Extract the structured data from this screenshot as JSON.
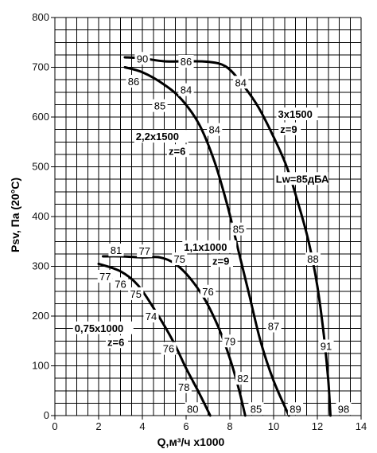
{
  "chart_data": {
    "type": "line",
    "xlabel": "Q,м³/ч x1000",
    "ylabel": "Psv, Па (20°C)",
    "xlim": [
      0,
      14
    ],
    "ylim": [
      0,
      800
    ],
    "x_ticks": [
      "0",
      "2",
      "4",
      "6",
      "8",
      "10",
      "12",
      "14"
    ],
    "y_ticks": [
      "0",
      "100",
      "200",
      "300",
      "400",
      "500",
      "600",
      "700",
      "800"
    ],
    "grid": true,
    "series": [
      {
        "name": "3x1500 z=9",
        "points": [
          [
            3.2,
            720
          ],
          [
            4.0,
            718
          ],
          [
            5.0,
            712
          ],
          [
            6.0,
            712
          ],
          [
            7.0,
            711
          ],
          [
            7.8,
            702
          ],
          [
            8.5,
            670
          ],
          [
            9.3,
            620
          ],
          [
            10.0,
            560
          ],
          [
            10.6,
            500
          ],
          [
            11.1,
            430
          ],
          [
            11.6,
            350
          ],
          [
            12.0,
            260
          ],
          [
            12.3,
            160
          ],
          [
            12.5,
            70
          ],
          [
            12.6,
            0
          ]
        ],
        "labels": [
          {
            "text": "90",
            "x": 4.0,
            "y": 718
          },
          {
            "text": "86",
            "x": 6.0,
            "y": 712
          },
          {
            "text": "84",
            "x": 8.5,
            "y": 670
          },
          {
            "text": "88",
            "x": 11.8,
            "y": 315
          },
          {
            "text": "91",
            "x": 12.4,
            "y": 140
          },
          {
            "text": "98",
            "x": 13.2,
            "y": 14
          }
        ]
      },
      {
        "name": "2,2x1500 z=6",
        "points": [
          [
            3.2,
            700
          ],
          [
            4.0,
            690
          ],
          [
            5.0,
            665
          ],
          [
            5.8,
            635
          ],
          [
            6.6,
            585
          ],
          [
            7.3,
            510
          ],
          [
            7.9,
            420
          ],
          [
            8.4,
            330
          ],
          [
            8.9,
            240
          ],
          [
            9.4,
            150
          ],
          [
            10.0,
            70
          ],
          [
            10.7,
            0
          ]
        ],
        "labels": [
          {
            "text": "86",
            "x": 3.6,
            "y": 672
          },
          {
            "text": "84",
            "x": 6.0,
            "y": 655
          },
          {
            "text": "85",
            "x": 4.8,
            "y": 623
          },
          {
            "text": "84",
            "x": 7.3,
            "y": 575
          },
          {
            "text": "85",
            "x": 8.4,
            "y": 375
          },
          {
            "text": "87",
            "x": 10.0,
            "y": 180
          },
          {
            "text": "89",
            "x": 11.0,
            "y": 14
          }
        ]
      },
      {
        "name": "1,1x1000 z=9",
        "points": [
          [
            2.2,
            320
          ],
          [
            3.0,
            320
          ],
          [
            4.0,
            318
          ],
          [
            4.8,
            318
          ],
          [
            5.5,
            305
          ],
          [
            6.2,
            275
          ],
          [
            6.9,
            230
          ],
          [
            7.5,
            175
          ],
          [
            8.0,
            115
          ],
          [
            8.4,
            55
          ],
          [
            8.7,
            0
          ]
        ],
        "labels": [
          {
            "text": "81",
            "x": 2.8,
            "y": 333
          },
          {
            "text": "77",
            "x": 4.1,
            "y": 331
          },
          {
            "text": "75",
            "x": 5.7,
            "y": 315
          },
          {
            "text": "76",
            "x": 7.0,
            "y": 250
          },
          {
            "text": "79",
            "x": 8.0,
            "y": 150
          },
          {
            "text": "82",
            "x": 8.6,
            "y": 75
          },
          {
            "text": "85",
            "x": 9.2,
            "y": 14
          }
        ]
      },
      {
        "name": "0,75x1000 z=6",
        "points": [
          [
            2.0,
            305
          ],
          [
            3.0,
            290
          ],
          [
            3.8,
            262
          ],
          [
            4.6,
            210
          ],
          [
            5.4,
            150
          ],
          [
            6.0,
            95
          ],
          [
            6.6,
            45
          ],
          [
            7.1,
            0
          ]
        ],
        "labels": [
          {
            "text": "77",
            "x": 2.3,
            "y": 280
          },
          {
            "text": "76",
            "x": 3.0,
            "y": 265
          },
          {
            "text": "75",
            "x": 3.7,
            "y": 245
          },
          {
            "text": "74",
            "x": 4.4,
            "y": 200
          },
          {
            "text": "76",
            "x": 5.2,
            "y": 135
          },
          {
            "text": "78",
            "x": 5.9,
            "y": 58
          },
          {
            "text": "80",
            "x": 6.3,
            "y": 14
          }
        ]
      }
    ],
    "annotations": [
      {
        "text": "3x1500",
        "x": 10.2,
        "y": 600,
        "bold": true
      },
      {
        "text": "z=9",
        "x": 10.3,
        "y": 570,
        "bold": true
      },
      {
        "text": "2,2x1500",
        "x": 3.7,
        "y": 555,
        "bold": true
      },
      {
        "text": "z=6",
        "x": 5.2,
        "y": 526,
        "bold": true
      },
      {
        "text": "1,1x1000",
        "x": 5.9,
        "y": 333,
        "bold": true
      },
      {
        "text": "z=9",
        "x": 7.2,
        "y": 305,
        "bold": true
      },
      {
        "text": "0,75x1000",
        "x": 0.9,
        "y": 170,
        "bold": true
      },
      {
        "text": "z=6",
        "x": 2.4,
        "y": 142,
        "bold": true
      },
      {
        "text": "Lw=85дБА",
        "x": 10.1,
        "y": 470,
        "bold": true
      }
    ]
  }
}
